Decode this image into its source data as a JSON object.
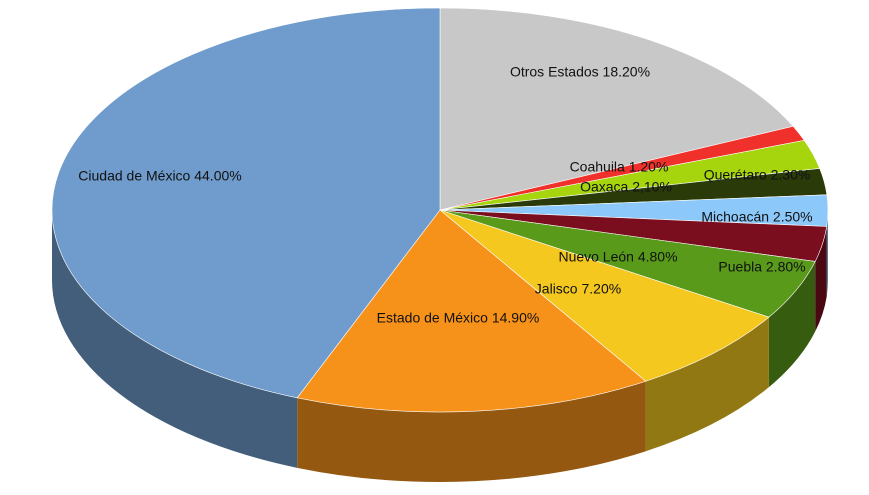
{
  "chart_data": {
    "type": "pie",
    "style": "3d-tilted",
    "start_angle_deg": -90,
    "direction": "clockwise",
    "slices": [
      {
        "label": "Otros Estados",
        "value_text": "18.20%",
        "value": 18.2,
        "color": "#c8c8c8"
      },
      {
        "label": "Coahuila",
        "value_text": "1.20%",
        "value": 1.2,
        "color": "#f0302a"
      },
      {
        "label": "Querétaro",
        "value_text": "2.30%",
        "value": 2.3,
        "color": "#a6d40d"
      },
      {
        "label": "Oaxaca",
        "value_text": "2,10%",
        "value": 2.1,
        "color": "#2a3a08"
      },
      {
        "label": "Michoacán",
        "value_text": "2.50%",
        "value": 2.5,
        "color": "#8cc9fa"
      },
      {
        "label": "Puebla",
        "value_text": "2.80%",
        "value": 2.8,
        "color": "#7a0e1e"
      },
      {
        "label": "Nuevo León",
        "value_text": "4.80%",
        "value": 4.8,
        "color": "#5a9a1a"
      },
      {
        "label": "Jalisco",
        "value_text": "7.20%",
        "value": 7.2,
        "color": "#f4c81f"
      },
      {
        "label": "Estado de México",
        "value_text": "14.90%",
        "value": 14.9,
        "color": "#f6921a"
      },
      {
        "label": "Ciudad de México",
        "value_text": "44.00%",
        "value": 44.0,
        "color": "#6f9ccc"
      }
    ]
  }
}
